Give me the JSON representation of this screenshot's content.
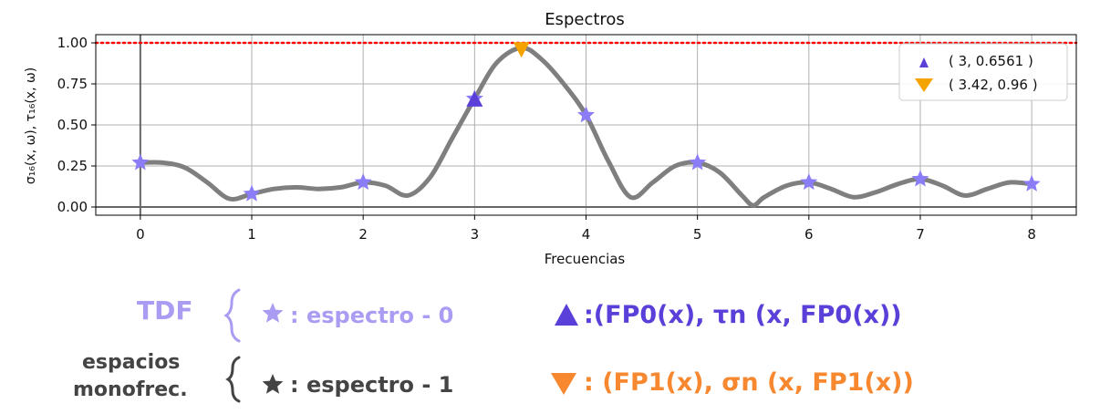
{
  "chart_data": {
    "type": "line",
    "title": "Espectros",
    "xlabel": "Frecuencias",
    "ylabel": "σ₁₆(x, ω), τ₁₆(x, ω)",
    "xlim": [
      -0.4,
      8.4
    ],
    "ylim": [
      -0.05,
      1.05
    ],
    "xticks": [
      "0",
      "1",
      "2",
      "3",
      "4",
      "5",
      "6",
      "7",
      "8"
    ],
    "yticks": [
      "0.00",
      "0.25",
      "0.50",
      "0.75",
      "1.00"
    ],
    "grid": true,
    "reference_line": {
      "y": 1.0,
      "style": "dotted",
      "color": "#ff0000"
    },
    "curve": {
      "color": "#7f7f7f",
      "x": [
        0,
        0.2,
        0.4,
        0.6,
        0.8,
        1.0,
        1.2,
        1.4,
        1.6,
        1.8,
        2.0,
        2.2,
        2.4,
        2.6,
        2.8,
        3.0,
        3.2,
        3.42,
        3.6,
        3.8,
        4.0,
        4.2,
        4.4,
        4.6,
        4.8,
        5.0,
        5.2,
        5.4,
        5.5,
        5.6,
        5.8,
        6.0,
        6.2,
        6.4,
        6.6,
        6.8,
        7.0,
        7.2,
        7.4,
        7.6,
        7.8,
        8.0
      ],
      "y": [
        0.27,
        0.27,
        0.24,
        0.15,
        0.05,
        0.08,
        0.11,
        0.12,
        0.11,
        0.12,
        0.15,
        0.13,
        0.07,
        0.18,
        0.42,
        0.66,
        0.88,
        0.97,
        0.9,
        0.75,
        0.56,
        0.28,
        0.06,
        0.15,
        0.25,
        0.27,
        0.21,
        0.07,
        0.01,
        0.06,
        0.13,
        0.15,
        0.11,
        0.06,
        0.09,
        0.14,
        0.17,
        0.13,
        0.07,
        0.11,
        0.15,
        0.14
      ]
    },
    "stars": {
      "color": "#8a7df7",
      "x": [
        0,
        1,
        2,
        3,
        4,
        5,
        6,
        7,
        8
      ],
      "y": [
        0.27,
        0.08,
        0.15,
        0.66,
        0.56,
        0.27,
        0.15,
        0.17,
        0.14
      ]
    },
    "series": [
      {
        "name": "( 3, 0.6561 )",
        "marker": "triangle-up",
        "color": "#5b3fd9",
        "x": [
          3
        ],
        "y": [
          0.6561
        ]
      },
      {
        "name": "( 3.42, 0.96 )",
        "marker": "triangle-down",
        "color": "#f5a300",
        "x": [
          3.42
        ],
        "y": [
          0.96
        ]
      }
    ],
    "legend": "top-right"
  },
  "annotations": {
    "row1": {
      "group_label": "TDF",
      "star_item": ": espectro - 0",
      "triangle_item": ":(FP0(x), τn (x, FP0(x))",
      "group_color": "#a99cf2",
      "triangle_color": "#5b3fd9"
    },
    "row2": {
      "group_label_line1": "espacios",
      "group_label_line2": "monofrec.",
      "star_item": ": espectro - 1",
      "triangle_item": ": (FP1(x), σn (x, FP1(x))",
      "group_color": "#444444",
      "triangle_color": "#f7882f"
    }
  }
}
